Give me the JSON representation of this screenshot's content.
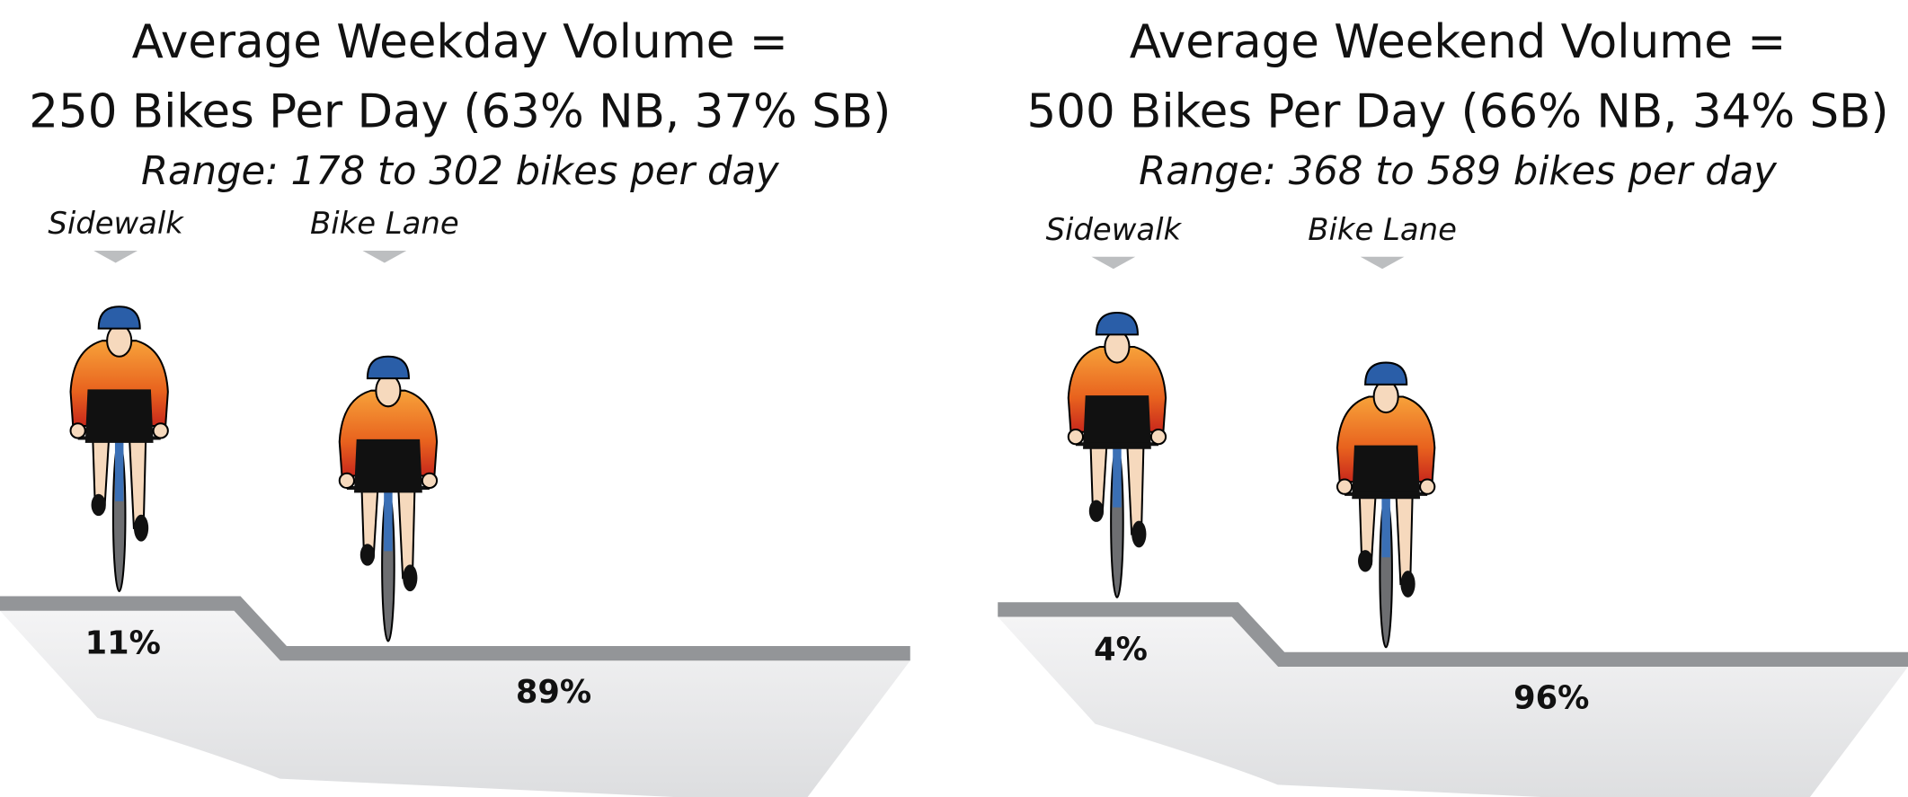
{
  "panels": [
    {
      "title_line1": "Average Weekday Volume =",
      "title_line2": "250 Bikes Per Day (63% NB, 37% SB)",
      "range": "Range: 178 to 302 bikes per day",
      "locations": [
        {
          "label": "Sidewalk",
          "share": "11%"
        },
        {
          "label": "Bike Lane",
          "share": "89%"
        }
      ]
    },
    {
      "title_line1": "Average Weekend Volume =",
      "title_line2": "500 Bikes Per Day (66% NB, 34% SB)",
      "range": "Range: 368 to 589 bikes per day",
      "locations": [
        {
          "label": "Sidewalk",
          "share": "4%"
        },
        {
          "label": "Bike Lane",
          "share": "96%"
        }
      ]
    }
  ]
}
